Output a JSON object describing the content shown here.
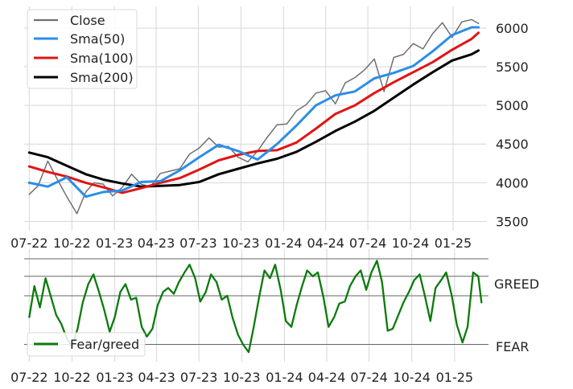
{
  "chart_data": [
    {
      "type": "line",
      "series": [
        {
          "name": "Close",
          "color": "#707070",
          "x": [
            "2022-07-01",
            "2022-07-20",
            "2022-08-10",
            "2022-08-31",
            "2022-09-20",
            "2022-10-12",
            "2022-10-31",
            "2022-11-18",
            "2022-12-08",
            "2022-12-28",
            "2023-01-18",
            "2023-02-07",
            "2023-02-28",
            "2023-03-20",
            "2023-04-10",
            "2023-05-01",
            "2023-05-22",
            "2023-06-12",
            "2023-07-03",
            "2023-07-24",
            "2023-08-14",
            "2023-09-04",
            "2023-09-25",
            "2023-10-16",
            "2023-11-06",
            "2023-11-27",
            "2023-12-18",
            "2024-01-08",
            "2024-01-29",
            "2024-02-19",
            "2024-03-11",
            "2024-04-01",
            "2024-04-22",
            "2024-05-13",
            "2024-06-03",
            "2024-06-24",
            "2024-07-15",
            "2024-08-05",
            "2024-08-26",
            "2024-09-16",
            "2024-10-07",
            "2024-10-28",
            "2024-11-18",
            "2024-12-09",
            "2024-12-30",
            "2025-01-20",
            "2025-02-10",
            "2025-02-25"
          ],
          "values": [
            3850,
            3960,
            4280,
            4040,
            3820,
            3600,
            3880,
            4000,
            3980,
            3830,
            3940,
            4110,
            3980,
            3950,
            4120,
            4150,
            4180,
            4370,
            4450,
            4580,
            4460,
            4470,
            4330,
            4270,
            4410,
            4590,
            4750,
            4760,
            4930,
            5010,
            5160,
            5190,
            5020,
            5290,
            5360,
            5460,
            5600,
            5180,
            5620,
            5660,
            5800,
            5730,
            5930,
            6070,
            5880,
            6080,
            6110,
            6060
          ]
        },
        {
          "name": "Sma(50)",
          "color": "#2b8ee8",
          "x": [
            "2022-07-01",
            "2022-08-10",
            "2022-09-20",
            "2022-10-31",
            "2022-12-08",
            "2023-01-18",
            "2023-02-28",
            "2023-04-10",
            "2023-05-22",
            "2023-07-03",
            "2023-08-14",
            "2023-09-25",
            "2023-11-06",
            "2023-12-18",
            "2024-01-29",
            "2024-03-11",
            "2024-04-22",
            "2024-06-03",
            "2024-07-15",
            "2024-08-26",
            "2024-10-07",
            "2024-11-18",
            "2024-12-30",
            "2025-02-10",
            "2025-02-25"
          ],
          "values": [
            4000,
            3950,
            4070,
            3820,
            3880,
            3900,
            4010,
            4020,
            4160,
            4330,
            4490,
            4410,
            4300,
            4500,
            4740,
            5000,
            5130,
            5180,
            5350,
            5420,
            5510,
            5700,
            5910,
            6010,
            6010
          ]
        },
        {
          "name": "Sma(100)",
          "color": "#e01515",
          "x": [
            "2022-07-01",
            "2022-08-10",
            "2022-09-20",
            "2022-10-31",
            "2022-12-08",
            "2023-01-18",
            "2023-02-28",
            "2023-04-10",
            "2023-05-22",
            "2023-07-03",
            "2023-08-14",
            "2023-09-25",
            "2023-11-06",
            "2023-12-18",
            "2024-01-29",
            "2024-03-11",
            "2024-04-22",
            "2024-06-03",
            "2024-07-15",
            "2024-08-26",
            "2024-10-07",
            "2024-11-18",
            "2024-12-30",
            "2025-02-10",
            "2025-02-25"
          ],
          "values": [
            4210,
            4140,
            4080,
            4000,
            3940,
            3870,
            3930,
            4000,
            4060,
            4170,
            4290,
            4360,
            4410,
            4420,
            4520,
            4700,
            4890,
            5000,
            5160,
            5300,
            5430,
            5560,
            5720,
            5860,
            5940
          ]
        },
        {
          "name": "Sma(200)",
          "color": "#000000",
          "x": [
            "2022-07-01",
            "2022-08-10",
            "2022-09-20",
            "2022-10-31",
            "2022-12-08",
            "2023-01-18",
            "2023-02-28",
            "2023-04-10",
            "2023-05-22",
            "2023-07-03",
            "2023-08-14",
            "2023-09-25",
            "2023-11-06",
            "2023-12-18",
            "2024-01-29",
            "2024-03-11",
            "2024-04-22",
            "2024-06-03",
            "2024-07-15",
            "2024-08-26",
            "2024-10-07",
            "2024-11-18",
            "2024-12-30",
            "2025-02-10",
            "2025-02-25"
          ],
          "values": [
            4390,
            4330,
            4220,
            4110,
            4040,
            3990,
            3950,
            3960,
            3970,
            4010,
            4110,
            4180,
            4250,
            4310,
            4400,
            4530,
            4670,
            4790,
            4930,
            5100,
            5270,
            5430,
            5580,
            5660,
            5710
          ]
        }
      ],
      "ylim": [
        3380,
        6280
      ],
      "yticks": [
        3500,
        4000,
        4500,
        5000,
        5500,
        6000
      ],
      "xticks": [
        "07-22",
        "10-22",
        "01-23",
        "04-23",
        "07-23",
        "10-23",
        "01-24",
        "04-24",
        "07-24",
        "10-24",
        "01-25"
      ],
      "xrange": [
        "2022-06-20",
        "2025-03-15"
      ],
      "grid": true,
      "legend_position": "top-left",
      "y_axis_side": "right"
    },
    {
      "type": "line",
      "series": [
        {
          "name": "Fear/greed",
          "color": "#0b7a0b",
          "x": [
            "2022-07-01",
            "2022-07-12",
            "2022-07-24",
            "2022-08-05",
            "2022-08-16",
            "2022-08-28",
            "2022-09-08",
            "2022-09-20",
            "2022-10-01",
            "2022-10-13",
            "2022-10-24",
            "2022-11-05",
            "2022-11-16",
            "2022-11-28",
            "2022-12-09",
            "2022-12-21",
            "2023-01-01",
            "2023-01-13",
            "2023-01-24",
            "2023-02-05",
            "2023-02-16",
            "2023-02-28",
            "2023-03-11",
            "2023-03-23",
            "2023-04-03",
            "2023-04-15",
            "2023-04-26",
            "2023-05-08",
            "2023-05-19",
            "2023-05-31",
            "2023-06-11",
            "2023-06-23",
            "2023-07-04",
            "2023-07-16",
            "2023-07-27",
            "2023-08-08",
            "2023-08-19",
            "2023-08-31",
            "2023-09-11",
            "2023-09-23",
            "2023-10-04",
            "2023-10-16",
            "2023-10-27",
            "2023-11-08",
            "2023-11-19",
            "2023-12-01",
            "2023-12-12",
            "2023-12-24",
            "2024-01-04",
            "2024-01-16",
            "2024-01-27",
            "2024-02-08",
            "2024-02-19",
            "2024-03-02",
            "2024-03-13",
            "2024-03-25",
            "2024-04-05",
            "2024-04-17",
            "2024-04-28",
            "2024-05-10",
            "2024-05-21",
            "2024-06-02",
            "2024-06-13",
            "2024-06-25",
            "2024-07-06",
            "2024-07-18",
            "2024-07-29",
            "2024-08-10",
            "2024-08-21",
            "2024-09-02",
            "2024-09-13",
            "2024-09-25",
            "2024-10-06",
            "2024-10-18",
            "2024-10-29",
            "2024-11-10",
            "2024-11-21",
            "2024-12-03",
            "2024-12-14",
            "2024-12-26",
            "2025-01-06",
            "2025-01-18",
            "2025-01-29",
            "2025-02-10",
            "2025-02-21",
            "2025-02-28"
          ],
          "values": [
            0.4,
            0.72,
            0.5,
            0.8,
            0.62,
            0.42,
            0.33,
            0.18,
            0.1,
            0.28,
            0.55,
            0.74,
            0.84,
            0.66,
            0.48,
            0.25,
            0.4,
            0.66,
            0.74,
            0.58,
            0.6,
            0.3,
            0.2,
            0.28,
            0.52,
            0.66,
            0.7,
            0.64,
            0.76,
            0.86,
            0.94,
            0.8,
            0.56,
            0.66,
            0.84,
            0.76,
            0.58,
            0.62,
            0.4,
            0.22,
            0.12,
            0.04,
            0.3,
            0.62,
            0.88,
            0.8,
            0.94,
            0.68,
            0.36,
            0.3,
            0.52,
            0.72,
            0.88,
            0.82,
            0.86,
            0.6,
            0.3,
            0.4,
            0.54,
            0.56,
            0.72,
            0.82,
            0.88,
            0.68,
            0.86,
            0.98,
            0.76,
            0.26,
            0.28,
            0.42,
            0.55,
            0.66,
            0.78,
            0.84,
            0.62,
            0.36,
            0.7,
            0.78,
            0.86,
            0.62,
            0.32,
            0.14,
            0.3,
            0.86,
            0.82,
            0.55
          ]
        }
      ],
      "ylim": [
        0,
        1
      ],
      "y_reference_lines": [
        0.12,
        0.62,
        0.82,
        1.0
      ],
      "category_labels": [
        "GREED",
        "FEAR"
      ],
      "category_label_levels": [
        0.82,
        0.12
      ],
      "xticks": [
        "07-22",
        "10-22",
        "01-23",
        "04-23",
        "07-23",
        "10-23",
        "01-24",
        "04-24",
        "07-24",
        "10-24",
        "01-25"
      ],
      "xrange": [
        "2022-06-20",
        "2025-03-15"
      ],
      "grid": true,
      "legend_position": "bottom-left"
    }
  ]
}
